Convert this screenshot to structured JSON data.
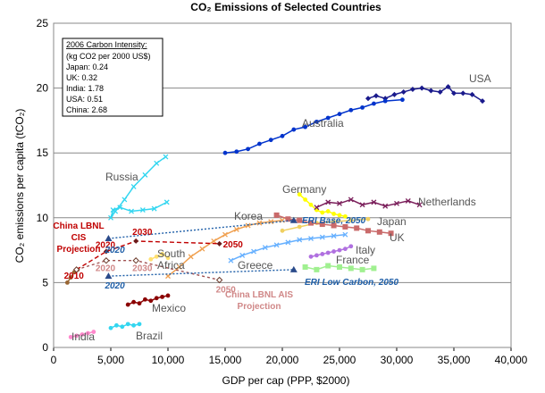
{
  "chart_data": {
    "type": "line",
    "title": "CO₂ Emissions of Selected Countries",
    "xlabel": "GDP per cap (PPP, $2000)",
    "ylabel": "CO₂ emissions per capita (tCO₂)",
    "xlim": [
      0,
      40000
    ],
    "ylim": [
      0,
      25
    ],
    "xticks": [
      "0",
      "5,000",
      "10,000",
      "15,000",
      "20,000",
      "25,000",
      "30,000",
      "35,000",
      "40,000"
    ],
    "yticks": [
      "0",
      "5",
      "10",
      "15",
      "20",
      "25"
    ],
    "grid": "horizontal",
    "info_box": {
      "title": "2006 Carbon Intensity:",
      "lines": [
        "(kg CO2 per 2000 US$)",
        "Japan: 0.24",
        "UK: 0.32",
        "India: 1.78",
        "USA: 0.51",
        "China: 2.68"
      ]
    },
    "series": [
      {
        "name": "USA",
        "label": "USA",
        "color": "#1a1a8c",
        "marker": "diamond",
        "x": [
          27500,
          28200,
          29000,
          29800,
          30600,
          31400,
          32200,
          33000,
          33800,
          34500,
          35000,
          35800,
          36600,
          37500
        ],
        "y": [
          19.2,
          19.4,
          19.2,
          19.5,
          19.7,
          19.9,
          20.0,
          19.8,
          19.7,
          20.1,
          19.6,
          19.6,
          19.5,
          19.0
        ]
      },
      {
        "name": "Australia",
        "label": "Australia",
        "color": "#0033cc",
        "marker": "dot",
        "x": [
          15000,
          16000,
          17000,
          18000,
          19000,
          20000,
          21000,
          22000,
          23000,
          24000,
          25000,
          26000,
          27000,
          28000,
          29000,
          30500
        ],
        "y": [
          15.0,
          15.1,
          15.3,
          15.7,
          16.0,
          16.3,
          16.8,
          17.0,
          17.4,
          17.7,
          18.0,
          18.3,
          18.5,
          18.8,
          19.0,
          19.1
        ]
      },
      {
        "name": "Russia",
        "label": "Russia",
        "color": "#33d6f0",
        "marker": "x",
        "x": [
          9800,
          9000,
          8000,
          7000,
          6200,
          5400,
          5000,
          5200,
          5800,
          6800,
          7800,
          8800,
          9900
        ],
        "y": [
          14.7,
          14.2,
          13.3,
          12.4,
          11.4,
          10.5,
          10.0,
          10.6,
          10.8,
          10.5,
          10.6,
          10.7,
          11.2
        ]
      },
      {
        "name": "Germany",
        "label": "Germany",
        "color": "#ffff00",
        "marker": "dot",
        "x": [
          21500,
          22000,
          22500,
          23000,
          23500,
          24000,
          24500,
          25000,
          25500
        ],
        "y": [
          11.8,
          11.4,
          11.0,
          10.6,
          10.4,
          10.5,
          10.3,
          10.2,
          10.1
        ]
      },
      {
        "name": "Netherlands",
        "label": "Netherlands",
        "color": "#7a1e5a",
        "marker": "x",
        "x": [
          23000,
          24000,
          25000,
          26000,
          27000,
          28000,
          29000,
          30000,
          31000,
          32000
        ],
        "y": [
          10.8,
          11.2,
          11.1,
          11.4,
          11.0,
          11.2,
          10.9,
          11.1,
          11.3,
          11.0
        ]
      },
      {
        "name": "Japan",
        "label": "Japan",
        "color": "#f0d060",
        "marker": "dot",
        "x": [
          20000,
          21500,
          23000,
          24500,
          26000,
          27500
        ],
        "y": [
          9.0,
          9.3,
          9.6,
          9.7,
          9.8,
          9.9
        ]
      },
      {
        "name": "UK",
        "label": "UK",
        "color": "#c96a6a",
        "marker": "square",
        "x": [
          19500,
          20500,
          21500,
          22500,
          23500,
          24500,
          25500,
          26500,
          27500,
          28500,
          29500
        ],
        "y": [
          10.2,
          9.9,
          9.8,
          9.6,
          9.5,
          9.4,
          9.3,
          9.2,
          9.0,
          8.9,
          8.8
        ]
      },
      {
        "name": "Korea",
        "label": "Korea",
        "color": "#f0a050",
        "marker": "x",
        "x": [
          10000,
          11000,
          12000,
          13000,
          14000,
          15000,
          16000,
          17000,
          18000,
          19000,
          20000
        ],
        "y": [
          5.5,
          6.2,
          7.0,
          7.6,
          8.2,
          8.7,
          9.1,
          9.4,
          9.6,
          9.7,
          9.8
        ]
      },
      {
        "name": "Greece",
        "label": "Greece",
        "color": "#66b0ff",
        "marker": "x",
        "x": [
          15500,
          16500,
          17500,
          18500,
          19500,
          20500,
          21500,
          22500,
          23500,
          24500,
          25500
        ],
        "y": [
          6.7,
          7.1,
          7.4,
          7.7,
          7.9,
          8.1,
          8.3,
          8.4,
          8.5,
          8.6,
          8.7
        ]
      },
      {
        "name": "Italy",
        "label": "Italy",
        "color": "#b070e0",
        "marker": "dot",
        "x": [
          22500,
          23000,
          23500,
          24000,
          24500,
          25000,
          25500,
          26000
        ],
        "y": [
          7.0,
          7.1,
          7.2,
          7.3,
          7.4,
          7.5,
          7.6,
          7.8
        ]
      },
      {
        "name": "France",
        "label": "France",
        "color": "#a0f090",
        "marker": "square",
        "x": [
          22000,
          23000,
          24000,
          25000,
          26000,
          27000,
          28000
        ],
        "y": [
          6.2,
          6.0,
          6.3,
          6.2,
          6.1,
          6.0,
          6.1
        ]
      },
      {
        "name": "South Africa",
        "label": "South\nAfrica",
        "color": "#ffe070",
        "marker": "dot",
        "x": [
          8500,
          9000,
          9500,
          10000
        ],
        "y": [
          6.8,
          7.0,
          7.2,
          6.9
        ]
      },
      {
        "name": "Mexico",
        "label": "Mexico",
        "color": "#8b0000",
        "marker": "dot",
        "x": [
          6500,
          7000,
          7500,
          8000,
          8500,
          9000,
          9500,
          10000
        ],
        "y": [
          3.3,
          3.5,
          3.4,
          3.7,
          3.6,
          3.8,
          3.9,
          4.0
        ]
      },
      {
        "name": "Brazil",
        "label": "Brazil",
        "color": "#33d6f0",
        "marker": "dot",
        "x": [
          5000,
          5500,
          6000,
          6500,
          7000,
          7500
        ],
        "y": [
          1.5,
          1.7,
          1.6,
          1.8,
          1.7,
          1.8
        ]
      },
      {
        "name": "India",
        "label": "India",
        "color": "#ff88cc",
        "marker": "dot",
        "x": [
          1500,
          2000,
          2500,
          3000,
          3500
        ],
        "y": [
          0.8,
          0.9,
          1.0,
          1.1,
          1.2
        ]
      },
      {
        "name": "China",
        "label": "China",
        "color": "#996633",
        "marker": "dot",
        "x": [
          1200,
          1500,
          1800,
          2100
        ],
        "y": [
          5.0,
          5.4,
          5.8,
          6.0
        ]
      }
    ],
    "projections": [
      {
        "name": "China LBNL CIS Projection",
        "color": "#c00000",
        "dash": "5,3",
        "x": [
          2000,
          4600,
          7200,
          14500
        ],
        "y": [
          6.0,
          7.4,
          8.2,
          8.0
        ],
        "year_labels": [
          {
            "x": 2000,
            "y": 6.0,
            "t": "2010"
          },
          {
            "x": 4600,
            "y": 7.4,
            "t": "2020"
          },
          {
            "x": 7200,
            "y": 8.2,
            "t": "2030"
          },
          {
            "x": 14500,
            "y": 8.0,
            "t": "2050"
          }
        ]
      },
      {
        "name": "China LBNL AIS Projection",
        "color": "#a05050",
        "dash": "3,3",
        "x": [
          2000,
          4600,
          7200,
          14500
        ],
        "y": [
          6.0,
          6.7,
          6.7,
          5.2
        ],
        "year_labels": [
          {
            "x": 4600,
            "y": 6.7,
            "t": "2020"
          },
          {
            "x": 7200,
            "y": 6.7,
            "t": "2030"
          },
          {
            "x": 14500,
            "y": 5.2,
            "t": "2050"
          }
        ]
      },
      {
        "name": "ERI Base",
        "color": "#1f5fa8",
        "dash": "2,2",
        "x": [
          4800,
          21000
        ],
        "y": [
          8.4,
          9.8
        ],
        "year_labels": [
          {
            "x": 4800,
            "y": 8.4,
            "t": "2020"
          }
        ]
      },
      {
        "name": "ERI Low Carbon",
        "color": "#1f5fa8",
        "dash": "2,2",
        "x": [
          4800,
          21000
        ],
        "y": [
          5.5,
          6.0
        ],
        "year_labels": [
          {
            "x": 4800,
            "y": 5.5,
            "t": "2020"
          }
        ]
      }
    ],
    "annotations": {
      "china_lbnl_cis": "China LBNL\nCIS\nProjection",
      "china_lbnl_ais": "China LBNL  AIS\nProjection",
      "eri_base": "ERI Base, 2050",
      "eri_low": "ERI Low Carbon, 2050"
    }
  }
}
